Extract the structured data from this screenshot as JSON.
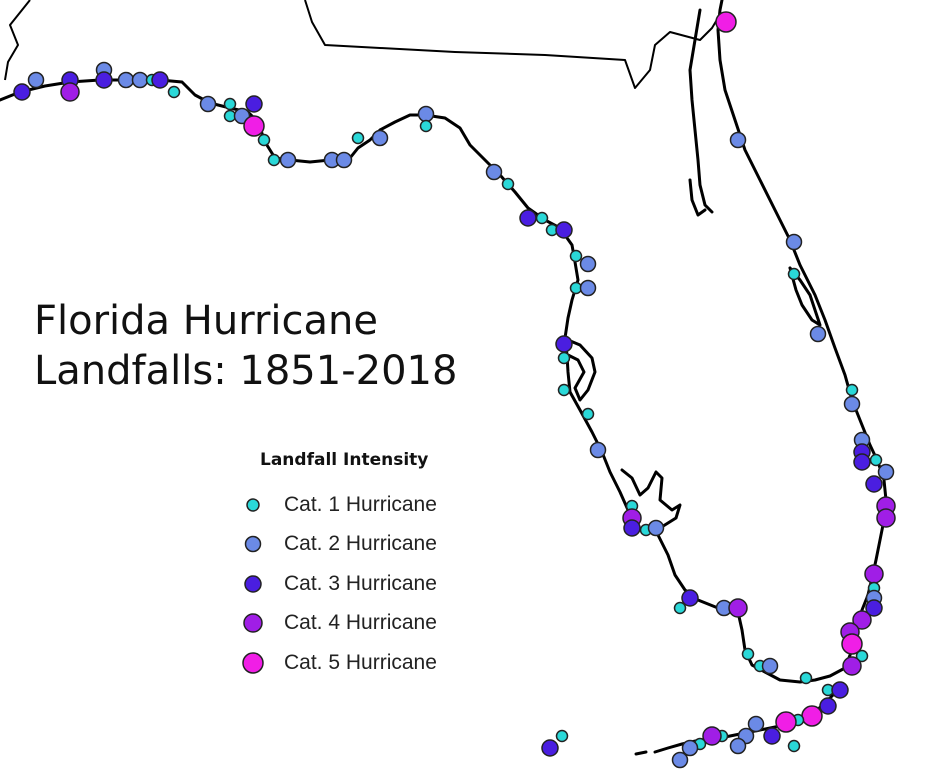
{
  "map": {
    "title_line1": "Florida Hurricane",
    "title_line2": "Landfalls: 1851-2018"
  },
  "legend": {
    "title": "Landfall Intensity",
    "items": [
      {
        "label": "Cat. 1 Hurricane",
        "category": 1,
        "color": "#2ad8d8"
      },
      {
        "label": "Cat. 2 Hurricane",
        "category": 2,
        "color": "#6b8ae6"
      },
      {
        "label": "Cat. 3 Hurricane",
        "category": 3,
        "color": "#4a1ee0"
      },
      {
        "label": "Cat. 4 Hurricane",
        "category": 4,
        "color": "#a01ee6"
      },
      {
        "label": "Cat. 5 Hurricane",
        "category": 5,
        "color": "#f01ee6"
      }
    ]
  }
}
